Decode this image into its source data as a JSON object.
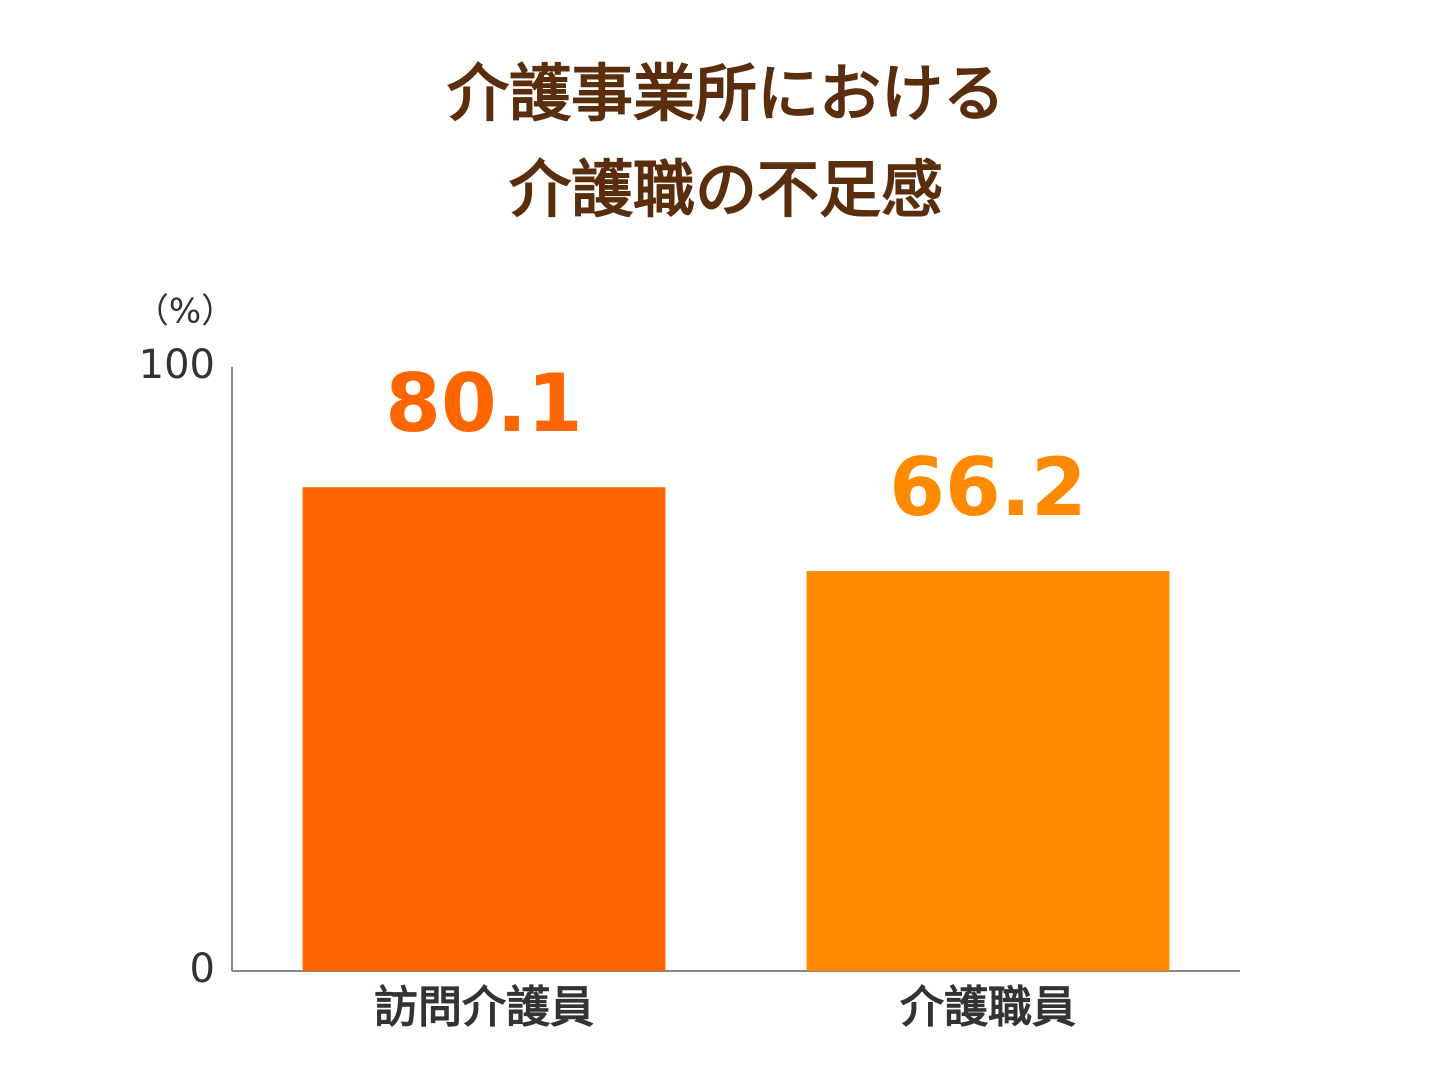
{
  "chart_data": {
    "type": "bar",
    "title": [
      "介護事業所における",
      "介護職の不足感"
    ],
    "y_label": "（%）",
    "categories": [
      "訪問介護員",
      "介護職員"
    ],
    "values": [
      80.1,
      66.2
    ],
    "colors": [
      "#ff6600",
      "#ff8a00"
    ],
    "ylim": [
      0,
      100
    ],
    "yticks": [
      0,
      100
    ],
    "grid": false
  }
}
